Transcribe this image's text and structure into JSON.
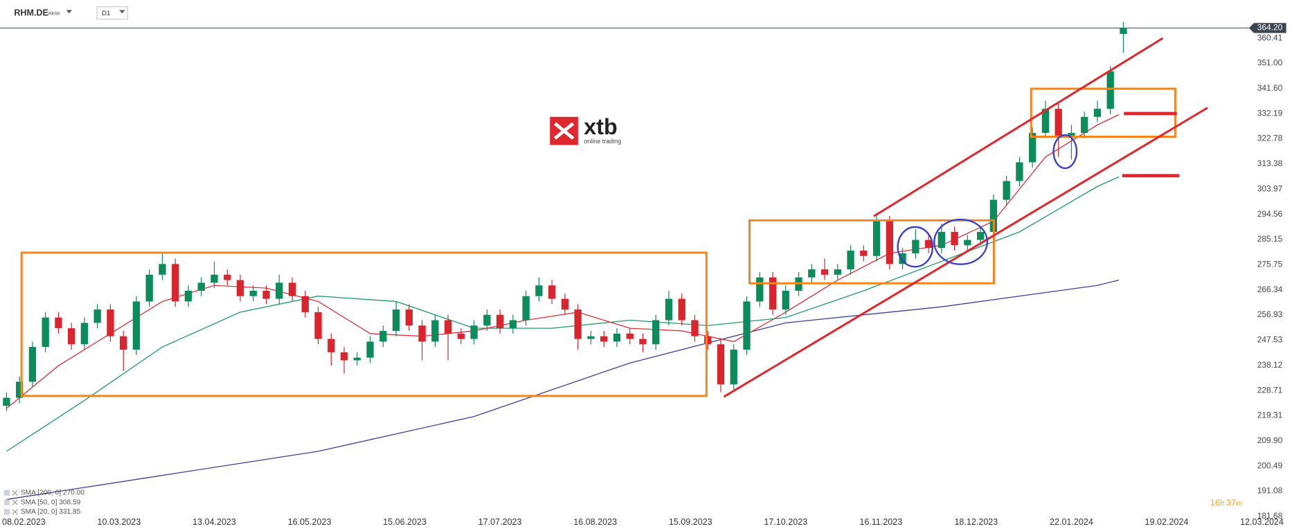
{
  "chart_data": {
    "type": "candlestick",
    "symbol": "RHM.DE",
    "instrument": "Aktie",
    "timeframe": "D1",
    "logo": {
      "brand": "xtb",
      "tagline": "online trading"
    },
    "countdown": [
      "16",
      "h",
      "37",
      "m"
    ],
    "last_price": {
      "value": 364.2,
      "label": "364.20"
    },
    "up_color": "#0b8c5a",
    "down_color": "#d8252e",
    "x": [
      0,
      3,
      6,
      9,
      12,
      15,
      18,
      21,
      24,
      27,
      30,
      33,
      36,
      39,
      42,
      45,
      48,
      51,
      54,
      57,
      60,
      63,
      66,
      69,
      72,
      75,
      78,
      81,
      84,
      87,
      90,
      93,
      96,
      99,
      102,
      105,
      108,
      111,
      114,
      117,
      120,
      123,
      126,
      129,
      132,
      135,
      138,
      141,
      144,
      147,
      150,
      153,
      156,
      159,
      162,
      165,
      168,
      171,
      174,
      177,
      180,
      183,
      186,
      189,
      192,
      195,
      198,
      201,
      204,
      207,
      210,
      213,
      216,
      219,
      222,
      225,
      228,
      231,
      234,
      237,
      240,
      243,
      246,
      249,
      252,
      255,
      258
    ],
    "open": [
      223,
      226,
      232,
      245,
      256,
      252,
      246,
      254,
      259,
      249,
      244,
      262,
      272,
      276,
      262,
      266,
      269,
      272,
      270,
      264,
      266,
      263,
      269,
      264,
      258,
      248,
      243,
      240,
      241,
      247,
      251,
      259,
      253,
      247,
      255,
      250,
      248,
      253,
      257,
      252,
      255,
      264,
      268,
      263,
      259,
      248,
      249,
      247,
      250,
      248,
      246,
      255,
      263,
      255,
      249,
      246,
      231,
      244,
      262,
      271,
      259,
      266,
      271,
      274,
      272,
      274,
      281,
      279,
      292,
      276,
      280,
      285,
      282,
      288,
      283,
      285,
      288,
      300,
      307,
      314,
      325,
      334,
      324,
      325,
      331,
      334,
      362
    ],
    "high": [
      228,
      234,
      247,
      258,
      258,
      254,
      256,
      261,
      261,
      251,
      264,
      274,
      280,
      278,
      268,
      271,
      277,
      274,
      272,
      268,
      268,
      272,
      271,
      266,
      260,
      250,
      245,
      243,
      249,
      253,
      262,
      261,
      255,
      257,
      257,
      252,
      255,
      259,
      259,
      257,
      266,
      271,
      270,
      265,
      261,
      251,
      251,
      252,
      252,
      250,
      257,
      266,
      265,
      257,
      251,
      248,
      246,
      264,
      273,
      273,
      268,
      273,
      276,
      278,
      276,
      283,
      283,
      295,
      294,
      282,
      289,
      287,
      291,
      290,
      287,
      290,
      302,
      309,
      316,
      327,
      337,
      336,
      328,
      333,
      337,
      350,
      366.5
    ],
    "low": [
      221,
      224,
      230,
      243,
      250,
      244,
      244,
      252,
      247,
      236,
      242,
      260,
      270,
      260,
      260,
      264,
      267,
      268,
      262,
      262,
      261,
      261,
      262,
      256,
      246,
      238,
      235,
      238,
      239,
      245,
      249,
      251,
      240,
      245,
      240,
      246,
      246,
      251,
      250,
      250,
      253,
      262,
      261,
      257,
      244,
      246,
      245,
      245,
      246,
      243,
      244,
      253,
      253,
      247,
      244,
      228,
      229,
      242,
      260,
      257,
      257,
      264,
      269,
      270,
      270,
      272,
      277,
      277,
      274,
      274,
      278,
      280,
      280,
      281,
      281,
      283,
      286,
      298,
      305,
      312,
      323,
      316,
      315,
      323,
      329,
      332,
      355
    ],
    "close": [
      226,
      232,
      245,
      256,
      252,
      246,
      254,
      259,
      249,
      244,
      262,
      272,
      276,
      262,
      266,
      269,
      272,
      270,
      264,
      266,
      263,
      269,
      264,
      258,
      248,
      243,
      240,
      241,
      247,
      251,
      259,
      253,
      247,
      255,
      250,
      248,
      253,
      257,
      252,
      255,
      264,
      268,
      263,
      259,
      248,
      249,
      247,
      250,
      248,
      246,
      255,
      263,
      255,
      249,
      246,
      231,
      244,
      262,
      271,
      259,
      266,
      271,
      274,
      272,
      274,
      281,
      279,
      292,
      276,
      280,
      285,
      282,
      288,
      283,
      285,
      288,
      300,
      307,
      314,
      325,
      334,
      324,
      325,
      331,
      334,
      348,
      364.2
    ],
    "overlays": [
      {
        "name": "SMA [200, 0] 270.00",
        "color": "#3b3f9c",
        "x": [
          0,
          36,
          72,
          108,
          144,
          180,
          216,
          252,
          257
        ],
        "values": [
          188,
          197,
          206,
          219,
          239,
          254,
          260,
          268,
          270
        ]
      },
      {
        "name": "SMA [50, 0] 308.59",
        "color": "#1f9a6a",
        "x": [
          0,
          18,
          36,
          54,
          72,
          90,
          108,
          126,
          144,
          162,
          180,
          198,
          216,
          234,
          252,
          257
        ],
        "values": [
          206,
          225,
          245,
          258,
          264,
          262,
          252,
          252,
          255,
          253,
          256,
          266,
          277,
          288,
          305,
          308.59
        ]
      },
      {
        "name": "SMA [20, 0] 331.85",
        "color": "#e0303a",
        "x": [
          0,
          12,
          24,
          36,
          48,
          60,
          72,
          84,
          96,
          108,
          120,
          132,
          144,
          156,
          162,
          168,
          180,
          192,
          204,
          216,
          228,
          240,
          252,
          257
        ],
        "values": [
          222,
          238,
          250,
          262,
          268,
          267,
          262,
          250,
          249,
          251,
          255,
          258,
          252,
          251,
          249,
          247,
          258,
          270,
          280,
          283,
          292,
          316,
          328,
          331.85
        ]
      }
    ],
    "xlim": [
      -1.5,
      296
    ],
    "ylim": [
      181.2,
      366.9
    ],
    "xticks": [
      {
        "value": 4,
        "label": "08.02.2023"
      },
      {
        "value": 26,
        "label": "10.03.2023"
      },
      {
        "value": 48,
        "label": "13.04.2023"
      },
      {
        "value": 70,
        "label": "16.05.2023"
      },
      {
        "value": 92,
        "label": "15.06.2023"
      },
      {
        "value": 114,
        "label": "17.07.2023"
      },
      {
        "value": 136,
        "label": "16.08.2023"
      },
      {
        "value": 158,
        "label": "15.09.2023"
      },
      {
        "value": 180,
        "label": "17.10.2023"
      },
      {
        "value": 202,
        "label": "16.11.2023"
      },
      {
        "value": 224,
        "label": "18.12.2023"
      },
      {
        "value": 246,
        "label": "22.01.2024"
      },
      {
        "value": 268,
        "label": "19.02.2024"
      },
      {
        "value": 290,
        "label": "12.03.2024"
      }
    ],
    "yticks": [
      360.41,
      {
        "value": 351,
        "label": "351.00"
      },
      {
        "value": 341.6,
        "label": "341.60"
      },
      332.19,
      322.78,
      313.38,
      303.97,
      294.56,
      285.15,
      275.75,
      266.34,
      256.93,
      247.53,
      238.12,
      228.71,
      219.31,
      {
        "value": 209.9,
        "label": "209.90"
      },
      200.49,
      191.08,
      181.68
    ]
  }
}
